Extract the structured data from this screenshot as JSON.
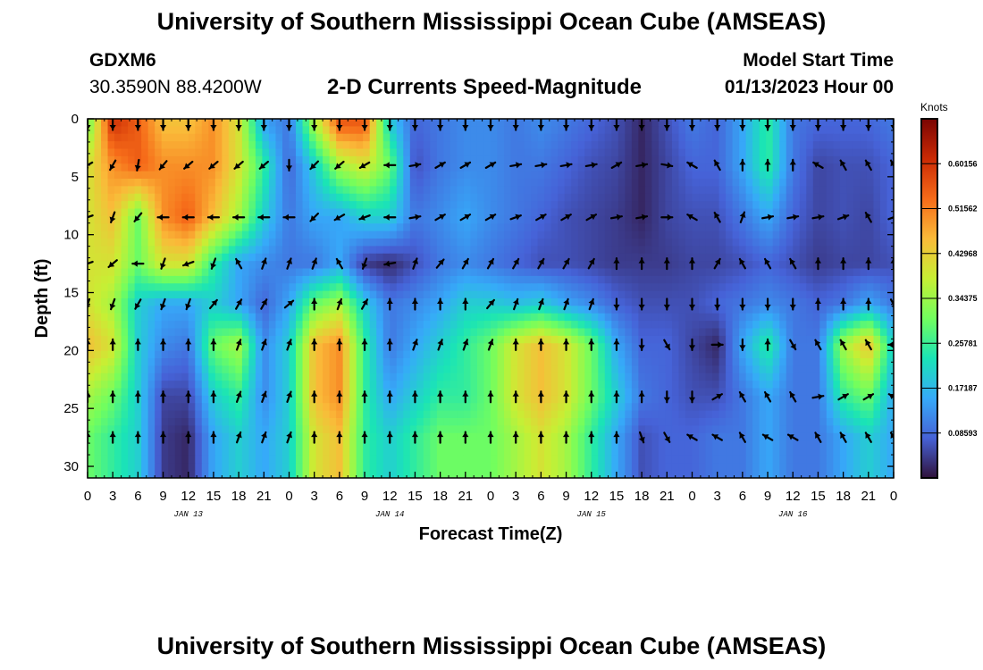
{
  "header": {
    "title": "University of Southern Mississippi Ocean Cube (AMSEAS)",
    "station_id": "GDXM6",
    "coords": "30.3590N  88.4200W",
    "subtitle": "2-D Currents Speed-Magnitude",
    "model_start_label": "Model Start Time",
    "model_start_value": "01/13/2023 Hour 00"
  },
  "footer": {
    "title": "University of Southern Mississippi Ocean Cube (AMSEAS)"
  },
  "colors": {
    "colormap": [
      "#30123b",
      "#4662d7",
      "#36aaf9",
      "#1ae4b6",
      "#72fe5e",
      "#c7ef34",
      "#faba39",
      "#f66b19",
      "#ca2a04",
      "#7a0403"
    ],
    "arrow": "#000000",
    "axis": "#000000"
  },
  "chart_data": {
    "type": "heatmap",
    "title": "2-D Currents Speed-Magnitude",
    "xlabel": "Forecast Time(Z)",
    "ylabel": "Depth (ft)",
    "x_range_hours": [
      0,
      96
    ],
    "y_range_ft": [
      0,
      31
    ],
    "x_tick_hours": [
      0,
      3,
      6,
      9,
      12,
      15,
      18,
      21,
      24,
      27,
      30,
      33,
      36,
      39,
      42,
      45,
      48,
      51,
      54,
      57,
      60,
      63,
      66,
      69,
      72,
      75,
      78,
      81,
      84,
      87,
      90,
      93,
      96
    ],
    "x_tick_labels": [
      "0",
      "3",
      "6",
      "9",
      "12",
      "15",
      "18",
      "21",
      "0",
      "3",
      "6",
      "9",
      "12",
      "15",
      "18",
      "21",
      "0",
      "3",
      "6",
      "9",
      "12",
      "15",
      "18",
      "21",
      "0",
      "3",
      "6",
      "9",
      "12",
      "15",
      "18",
      "21",
      "0"
    ],
    "day_labels": [
      {
        "text": "JAN 13",
        "hour": 12
      },
      {
        "text": "JAN 14",
        "hour": 36
      },
      {
        "text": "JAN 15",
        "hour": 60
      },
      {
        "text": "JAN 16",
        "hour": 84
      }
    ],
    "y_ticks": [
      0,
      5,
      10,
      15,
      20,
      25,
      30
    ],
    "y_tick_labels": [
      "0",
      "5",
      "10",
      "15",
      "20",
      "25",
      "30"
    ],
    "colorbar": {
      "title": "Knots",
      "min": 0.0,
      "max": 0.6875,
      "labeled_values": [
        0.60156,
        0.51562,
        0.42968,
        0.34375,
        0.25781,
        0.17187,
        0.08593
      ],
      "labels": [
        "0.60156",
        "0.51562",
        "0.42968",
        "0.34375",
        "0.25781",
        "0.17187",
        "0.08593"
      ]
    },
    "arrow_hours": [
      0,
      3,
      6,
      9,
      12,
      15,
      18,
      21,
      24,
      27,
      30,
      33,
      36,
      39,
      42,
      45,
      48,
      51,
      54,
      57,
      60,
      63,
      66,
      69,
      72,
      75,
      78,
      81,
      84,
      87,
      90,
      93,
      96
    ],
    "arrow_depths_ft": [
      0.5,
      4.0,
      8.5,
      12.5,
      16.0,
      19.5,
      24.0,
      27.5
    ],
    "speed_knots": [
      [
        0.3,
        0.6,
        0.55,
        0.45,
        0.45,
        0.5,
        0.4,
        0.15,
        0.1,
        0.35,
        0.55,
        0.55,
        0.2,
        0.08,
        0.1,
        0.12,
        0.12,
        0.1,
        0.12,
        0.1,
        0.08,
        0.06,
        0.02,
        0.06,
        0.1,
        0.08,
        0.15,
        0.25,
        0.1,
        0.08,
        0.08,
        0.08,
        0.1
      ],
      [
        0.4,
        0.5,
        0.55,
        0.5,
        0.5,
        0.5,
        0.4,
        0.25,
        0.08,
        0.2,
        0.35,
        0.4,
        0.3,
        0.06,
        0.1,
        0.12,
        0.12,
        0.1,
        0.1,
        0.08,
        0.06,
        0.05,
        0.02,
        0.05,
        0.08,
        0.08,
        0.15,
        0.25,
        0.1,
        0.05,
        0.06,
        0.06,
        0.08
      ],
      [
        0.4,
        0.45,
        0.3,
        0.5,
        0.55,
        0.45,
        0.35,
        0.2,
        0.1,
        0.15,
        0.15,
        0.2,
        0.2,
        0.1,
        0.12,
        0.15,
        0.12,
        0.1,
        0.08,
        0.06,
        0.05,
        0.04,
        0.02,
        0.05,
        0.06,
        0.06,
        0.1,
        0.15,
        0.08,
        0.05,
        0.06,
        0.05,
        0.08
      ],
      [
        0.4,
        0.4,
        0.3,
        0.4,
        0.4,
        0.25,
        0.15,
        0.12,
        0.1,
        0.1,
        0.15,
        0.04,
        0.02,
        0.06,
        0.1,
        0.12,
        0.1,
        0.08,
        0.06,
        0.06,
        0.05,
        0.04,
        0.04,
        0.04,
        0.05,
        0.05,
        0.06,
        0.08,
        0.06,
        0.04,
        0.05,
        0.05,
        0.06
      ],
      [
        0.4,
        0.35,
        0.2,
        0.15,
        0.15,
        0.2,
        0.15,
        0.08,
        0.15,
        0.3,
        0.35,
        0.2,
        0.1,
        0.12,
        0.15,
        0.2,
        0.2,
        0.18,
        0.2,
        0.15,
        0.12,
        0.08,
        0.06,
        0.06,
        0.06,
        0.08,
        0.1,
        0.12,
        0.1,
        0.08,
        0.1,
        0.15,
        0.1
      ],
      [
        0.45,
        0.4,
        0.2,
        0.12,
        0.1,
        0.3,
        0.35,
        0.12,
        0.2,
        0.45,
        0.5,
        0.25,
        0.1,
        0.15,
        0.2,
        0.25,
        0.3,
        0.4,
        0.45,
        0.4,
        0.3,
        0.15,
        0.08,
        0.08,
        0.05,
        0.02,
        0.15,
        0.25,
        0.1,
        0.1,
        0.35,
        0.45,
        0.2
      ],
      [
        0.35,
        0.3,
        0.2,
        0.05,
        0.05,
        0.2,
        0.25,
        0.12,
        0.2,
        0.45,
        0.5,
        0.25,
        0.15,
        0.2,
        0.25,
        0.25,
        0.3,
        0.4,
        0.45,
        0.4,
        0.3,
        0.2,
        0.1,
        0.08,
        0.06,
        0.06,
        0.1,
        0.15,
        0.1,
        0.1,
        0.25,
        0.3,
        0.15
      ],
      [
        0.3,
        0.25,
        0.2,
        0.04,
        0.02,
        0.15,
        0.2,
        0.15,
        0.2,
        0.4,
        0.45,
        0.25,
        0.2,
        0.25,
        0.3,
        0.3,
        0.3,
        0.35,
        0.4,
        0.35,
        0.25,
        0.15,
        0.06,
        0.08,
        0.08,
        0.1,
        0.1,
        0.15,
        0.1,
        0.1,
        0.15,
        0.2,
        0.15
      ]
    ],
    "direction_deg": [
      [
        180,
        180,
        180,
        180,
        180,
        180,
        180,
        180,
        180,
        180,
        180,
        180,
        180,
        180,
        180,
        180,
        180,
        180,
        180,
        180,
        180,
        180,
        180,
        180,
        180,
        180,
        180,
        180,
        180,
        180,
        180,
        180,
        180
      ],
      [
        240,
        210,
        190,
        220,
        230,
        230,
        230,
        230,
        180,
        225,
        230,
        240,
        270,
        80,
        60,
        60,
        60,
        80,
        80,
        80,
        80,
        60,
        80,
        100,
        300,
        330,
        0,
        0,
        0,
        300,
        330,
        330,
        330
      ],
      [
        250,
        200,
        220,
        270,
        270,
        270,
        270,
        270,
        270,
        225,
        240,
        250,
        270,
        80,
        60,
        60,
        60,
        70,
        60,
        60,
        60,
        80,
        80,
        90,
        300,
        330,
        20,
        80,
        80,
        80,
        70,
        330,
        70
      ],
      [
        250,
        230,
        270,
        200,
        250,
        200,
        330,
        20,
        20,
        20,
        330,
        200,
        260,
        20,
        40,
        30,
        30,
        30,
        30,
        30,
        30,
        0,
        0,
        0,
        0,
        30,
        330,
        330,
        330,
        0,
        0,
        0,
        0
      ],
      [
        200,
        200,
        210,
        200,
        200,
        40,
        30,
        30,
        50,
        0,
        20,
        30,
        0,
        0,
        0,
        0,
        40,
        20,
        20,
        20,
        20,
        180,
        180,
        180,
        180,
        180,
        180,
        180,
        180,
        0,
        0,
        0,
        150
      ],
      [
        0,
        0,
        0,
        0,
        0,
        0,
        20,
        20,
        20,
        0,
        0,
        0,
        0,
        20,
        20,
        20,
        20,
        0,
        0,
        0,
        0,
        0,
        180,
        150,
        180,
        90,
        180,
        0,
        150,
        330,
        330,
        330,
        270
      ],
      [
        0,
        0,
        0,
        0,
        0,
        0,
        20,
        20,
        20,
        0,
        0,
        0,
        0,
        0,
        0,
        0,
        0,
        0,
        0,
        0,
        0,
        0,
        0,
        180,
        180,
        60,
        330,
        330,
        330,
        80,
        60,
        60,
        300
      ],
      [
        0,
        0,
        0,
        0,
        0,
        0,
        20,
        20,
        20,
        0,
        0,
        0,
        0,
        0,
        0,
        0,
        0,
        0,
        0,
        0,
        0,
        0,
        160,
        150,
        300,
        300,
        330,
        300,
        300,
        330,
        330,
        330,
        330
      ]
    ]
  }
}
